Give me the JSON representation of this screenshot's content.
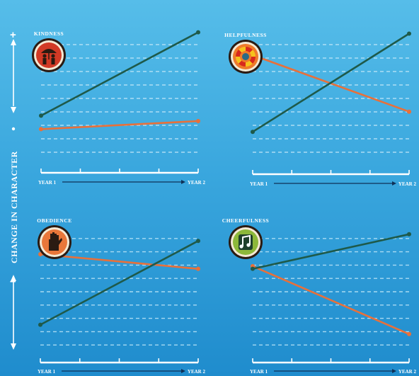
{
  "y_axis": {
    "title": "CHANGE IN CHARACTER",
    "plus_top": "+",
    "minus": "–",
    "plus_bottom": "+",
    "minus_bottom": "–"
  },
  "colors": {
    "green_series": "#1e5a4a",
    "orange_series": "#e8703a",
    "axis": "#ffffff",
    "gridline": "#bfe6f8"
  },
  "chart_data": [
    {
      "type": "line",
      "title": "KINDNESS",
      "icon": "umbrella-people-icon",
      "badge_color": "#d23a25",
      "x": [
        "YEAR 1",
        "YEAR 2"
      ],
      "series": [
        {
          "color": "#1e5a4a",
          "values": [
            3.4,
            9.6
          ]
        },
        {
          "color": "#e8703a",
          "values": [
            2.4,
            3.0
          ]
        }
      ],
      "ylim": [
        0,
        10
      ],
      "grid": true
    },
    {
      "type": "line",
      "title": "HELPFULNESS",
      "icon": "life-ring-icon",
      "badge_color": "#ef7a2a",
      "x": [
        "YEAR 1",
        "YEAR 2"
      ],
      "series": [
        {
          "color": "#1e5a4a",
          "values": [
            2.2,
            9.5
          ]
        },
        {
          "color": "#e8703a",
          "values": [
            7.9,
            3.7
          ]
        }
      ],
      "ylim": [
        0,
        10
      ],
      "grid": true
    },
    {
      "type": "line",
      "title": "OBEDIENCE",
      "icon": "raised-hand-icon",
      "badge_color": "#e9773a",
      "x": [
        "YEAR 1",
        "YEAR 2"
      ],
      "series": [
        {
          "color": "#1e5a4a",
          "values": [
            2.2,
            8.5
          ]
        },
        {
          "color": "#e8703a",
          "values": [
            7.5,
            6.4
          ]
        }
      ],
      "ylim": [
        0,
        10
      ],
      "grid": true
    },
    {
      "type": "line",
      "title": "CHEERFULNESS",
      "icon": "music-note-icon",
      "badge_color": "#8db83a",
      "x": [
        "YEAR 1",
        "YEAR 2"
      ],
      "series": [
        {
          "color": "#1e5a4a",
          "values": [
            6.4,
            9.0
          ]
        },
        {
          "color": "#e8703a",
          "values": [
            6.6,
            1.5
          ]
        }
      ],
      "ylim": [
        0,
        10
      ],
      "grid": true
    }
  ]
}
